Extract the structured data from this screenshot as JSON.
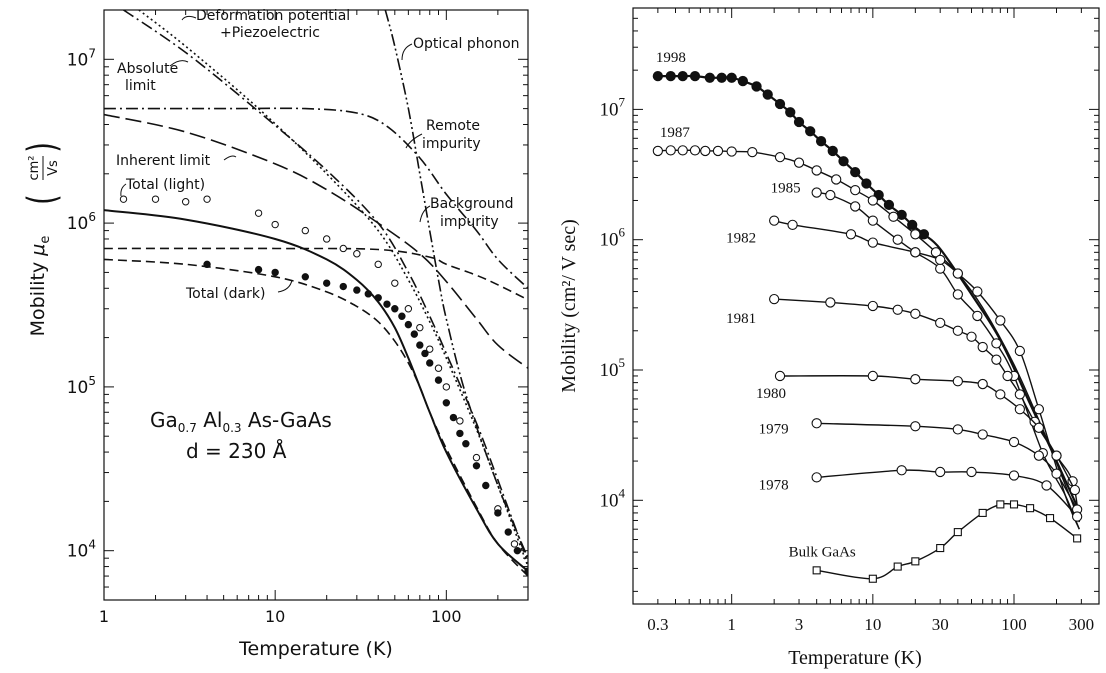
{
  "chart_data": [
    {
      "type": "line",
      "xscale": "log",
      "yscale": "log",
      "xlim": [
        1,
        300
      ],
      "ylim": [
        5000,
        20000000
      ],
      "xlabel": "Temperature (K)",
      "ylabel_main": "Mobility",
      "ylabel_symbol": "μ",
      "ylabel_sub": "e",
      "yunit_num": "cm²",
      "yunit_den": "Vs",
      "x_tick_labels": [
        "1",
        "10",
        "100"
      ],
      "y_tick_labels": [
        {
          "v": 10000,
          "base": "10",
          "exp": "4"
        },
        {
          "v": 100000,
          "base": "10",
          "exp": "5"
        },
        {
          "v": 1000000,
          "base": "10",
          "exp": "6"
        },
        {
          "v": 10000000,
          "base": "10",
          "exp": "7"
        }
      ],
      "annotation_material": {
        "p1": "Ga",
        "s1": "0.7",
        "p2": " Al",
        "s2": "0.3",
        "p3": " As-GaAs"
      },
      "annotation_spacer": "d = 230  Å",
      "series": [
        {
          "name": "Absolute limit",
          "style": "dotted",
          "x": [
            1.6,
            3,
            8,
            20,
            40,
            60,
            80,
            100,
            150,
            200,
            300
          ],
          "y": [
            20000000,
            12000000,
            5000000,
            2000000,
            900000,
            450000,
            250000,
            150000,
            55000,
            25000,
            8000
          ]
        },
        {
          "name": "Deformation potential +Piezoelectric",
          "style": "dashdot",
          "x": [
            1.3,
            3,
            8,
            20,
            40,
            60,
            80,
            100,
            150,
            200,
            300
          ],
          "y": [
            20000000,
            11000000,
            4800000,
            2100000,
            1000000,
            500000,
            270000,
            160000,
            60000,
            27000,
            8500
          ]
        },
        {
          "name": "Optical phonon",
          "style": "dashdotdot",
          "x": [
            44,
            50,
            60,
            70,
            80,
            90,
            100,
            130,
            200,
            300
          ],
          "y": [
            20000000,
            12000000,
            5000000,
            2000000,
            900000,
            450000,
            260000,
            90000,
            25000,
            9000
          ]
        },
        {
          "name": "Remote impurity",
          "style": "dashdot",
          "x": [
            1,
            5,
            15,
            30,
            45,
            70,
            100,
            150,
            200,
            300
          ],
          "y": [
            5000000,
            5000000,
            5000000,
            4700000,
            3900000,
            2500000,
            1500000,
            900000,
            600000,
            400000
          ]
        },
        {
          "name": "Inherent limit",
          "style": "longdash",
          "x": [
            1,
            3,
            10,
            20,
            40,
            70,
            100,
            150,
            200,
            300
          ],
          "y": [
            4600000,
            3600000,
            2300000,
            1600000,
            1000000,
            650000,
            440000,
            260000,
            180000,
            130000
          ]
        },
        {
          "name": "Background impurity",
          "style": "dashed",
          "x": [
            1,
            10,
            40,
            80,
            100,
            150,
            200,
            300
          ],
          "y": [
            700000,
            700000,
            690000,
            620000,
            560000,
            480000,
            420000,
            340000
          ]
        },
        {
          "name": "Total (light)",
          "style": "solid",
          "x": [
            1,
            3,
            10,
            20,
            30,
            40,
            50,
            60,
            70,
            80,
            100,
            150,
            200,
            300
          ],
          "y": [
            1200000,
            1050000,
            800000,
            600000,
            450000,
            330000,
            230000,
            150000,
            100000,
            70000,
            40000,
            18000,
            11000,
            7500
          ]
        },
        {
          "name": "Total (dark)",
          "style": "dashed",
          "x": [
            1,
            3,
            10,
            20,
            30,
            40,
            50,
            60,
            70,
            80,
            100,
            150,
            200,
            300
          ],
          "y": [
            600000,
            560000,
            470000,
            380000,
            310000,
            250000,
            190000,
            140000,
            100000,
            70000,
            42000,
            18500,
            11000,
            7000
          ]
        },
        {
          "name": "Total (light)",
          "marker": "open-circle",
          "x": [
            1.3,
            2,
            3,
            4,
            8,
            10,
            15,
            20,
            25,
            30,
            40,
            50,
            60,
            70,
            80,
            90,
            100,
            120,
            150,
            200,
            250,
            300
          ],
          "y": [
            1400000,
            1400000,
            1350000,
            1400000,
            1150000,
            980000,
            900000,
            800000,
            700000,
            650000,
            560000,
            430000,
            300000,
            230000,
            170000,
            130000,
            100000,
            62000,
            37000,
            18000,
            11000,
            7500
          ]
        },
        {
          "name": "Total (dark)",
          "marker": "filled-circle",
          "x": [
            4,
            8,
            10,
            15,
            20,
            25,
            30,
            35,
            40,
            45,
            50,
            55,
            60,
            65,
            70,
            75,
            80,
            90,
            100,
            110,
            120,
            130,
            150,
            170,
            200,
            230,
            260,
            300
          ],
          "y": [
            560000,
            520000,
            500000,
            470000,
            430000,
            410000,
            390000,
            370000,
            350000,
            320000,
            300000,
            270000,
            240000,
            210000,
            180000,
            160000,
            140000,
            110000,
            80000,
            65000,
            52000,
            45000,
            33000,
            25000,
            17000,
            13000,
            10000,
            7500
          ]
        }
      ],
      "annotations": [
        "Absolute limit",
        "Deformation potential",
        "+Piezoelectric",
        "Optical phonon",
        "Remote",
        "impurity",
        "Inherent limit",
        "Total (light)",
        "Background",
        "impurity",
        "Total (dark)"
      ]
    },
    {
      "type": "line",
      "xscale": "log",
      "yscale": "log",
      "xlim": [
        0.2,
        400
      ],
      "ylim": [
        1600,
        60000000
      ],
      "xlabel": "Temperature (K)",
      "ylabel": "Mobility (cm²/ V sec)",
      "x_tick_labels": [
        {
          "v": 0.3,
          "t": "0.3"
        },
        {
          "v": 1,
          "t": "1"
        },
        {
          "v": 3,
          "t": "3"
        },
        {
          "v": 10,
          "t": "10"
        },
        {
          "v": 30,
          "t": "30"
        },
        {
          "v": 100,
          "t": "100"
        },
        {
          "v": 300,
          "t": "300"
        }
      ],
      "y_tick_labels": [
        {
          "v": 10000,
          "base": "10",
          "exp": "4"
        },
        {
          "v": 100000,
          "base": "10",
          "exp": "5"
        },
        {
          "v": 1000000,
          "base": "10",
          "exp": "6"
        },
        {
          "v": 10000000,
          "base": "10",
          "exp": "7"
        }
      ],
      "series": [
        {
          "name": "1998",
          "marker": "filled-circle",
          "x": [
            0.3,
            0.37,
            0.45,
            0.55,
            0.7,
            0.85,
            1.0,
            1.2,
            1.5,
            1.8,
            2.2,
            2.6,
            3.0,
            3.6,
            4.3,
            5.2,
            6.2,
            7.5,
            9,
            11,
            13,
            16,
            19,
            23
          ],
          "y": [
            18000000,
            18000000,
            18000000,
            18000000,
            17500000,
            17500000,
            17500000,
            16500000,
            15000000,
            13000000,
            11000000,
            9500000,
            8000000,
            6800000,
            5700000,
            4800000,
            4000000,
            3300000,
            2700000,
            2200000,
            1850000,
            1550000,
            1300000,
            1100000
          ]
        },
        {
          "name": "1987",
          "marker": "open-circle",
          "x": [
            0.3,
            0.37,
            0.45,
            0.55,
            0.65,
            0.8,
            1.0,
            1.4,
            2.2,
            3.0,
            4.0,
            5.5,
            7.5,
            10,
            14,
            20,
            28,
            40
          ],
          "y": [
            4800000,
            4850000,
            4850000,
            4850000,
            4800000,
            4800000,
            4750000,
            4700000,
            4300000,
            3900000,
            3400000,
            2900000,
            2400000,
            2000000,
            1500000,
            1100000,
            800000,
            550000
          ]
        },
        {
          "name": "1985",
          "marker": "open-circle",
          "x": [
            4,
            5,
            7.5,
            10,
            15,
            20,
            30,
            40,
            55,
            75,
            100,
            160
          ],
          "y": [
            2300000,
            2200000,
            1800000,
            1400000,
            1000000,
            800000,
            600000,
            380000,
            260000,
            160000,
            90000,
            23000
          ]
        },
        {
          "name": "1982",
          "marker": "open-circle",
          "x": [
            2,
            2.7,
            7,
            10,
            20,
            30,
            40,
            55,
            80,
            110,
            150
          ],
          "y": [
            1400000,
            1300000,
            1100000,
            950000,
            800000,
            700000,
            550000,
            400000,
            240000,
            140000,
            50000
          ]
        },
        {
          "name": "1981",
          "marker": "open-circle",
          "x": [
            2,
            5,
            10,
            15,
            20,
            30,
            40,
            50,
            60,
            75,
            90,
            110,
            140,
            200,
            260
          ],
          "y": [
            350000,
            330000,
            310000,
            290000,
            270000,
            230000,
            200000,
            180000,
            150000,
            120000,
            90000,
            65000,
            40000,
            22000,
            14000
          ]
        },
        {
          "name": "1980",
          "marker": "open-circle",
          "x": [
            2.2,
            10,
            20,
            40,
            60,
            80,
            110,
            150,
            200,
            270
          ],
          "y": [
            90000,
            90000,
            85000,
            82000,
            78000,
            65000,
            50000,
            36000,
            22000,
            12000
          ]
        },
        {
          "name": "1979",
          "marker": "open-circle",
          "x": [
            4,
            20,
            40,
            60,
            100,
            150,
            200,
            280
          ],
          "y": [
            39000,
            37000,
            35000,
            32000,
            28000,
            22000,
            16000,
            8500
          ]
        },
        {
          "name": "1978",
          "marker": "open-circle",
          "x": [
            4,
            16,
            30,
            50,
            100,
            170,
            280
          ],
          "y": [
            15000,
            17000,
            16500,
            16500,
            15500,
            13000,
            7500
          ]
        },
        {
          "name": "Bulk GaAs",
          "marker": "open-square",
          "x": [
            4,
            10,
            15,
            20,
            30,
            40,
            60,
            80,
            100,
            130,
            180,
            280
          ],
          "y": [
            2900,
            2500,
            3100,
            3400,
            4300,
            5700,
            8000,
            9300,
            9300,
            8700,
            7300,
            5100
          ]
        }
      ]
    }
  ]
}
